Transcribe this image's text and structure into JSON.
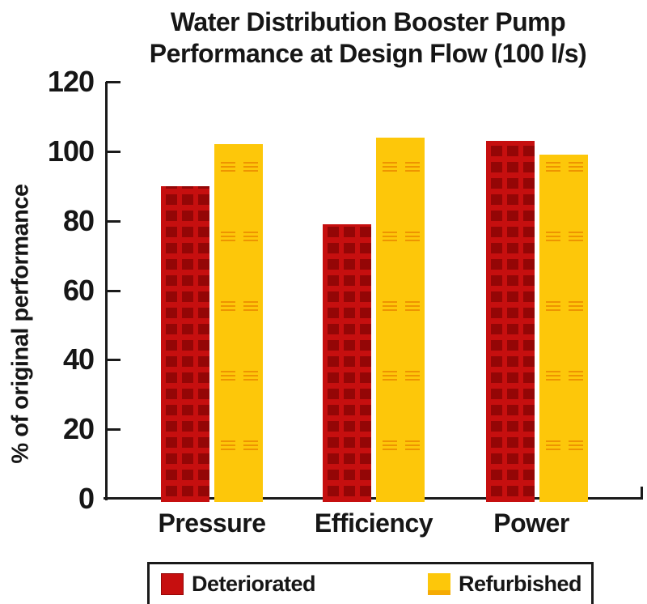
{
  "title": {
    "line1": "Water Distribution Booster Pump",
    "line2": "Performance at Design Flow (100 l/s)"
  },
  "colors": {
    "deteriorated": "#c60f0f",
    "deteriorated_dark": "#940606",
    "refurbished": "#fdc70a",
    "refurbished_dash": "#ee9400",
    "axis": "#1a1a1a",
    "text": "#161616",
    "background": "#ffffff"
  },
  "legend": {
    "items": [
      "Deteriorated",
      "Refurbished"
    ]
  },
  "chart_data": {
    "type": "bar",
    "title": "Water Distribution Booster Pump Performance at Design Flow (100 l/s)",
    "title_lines": [
      "Water Distribution Booster Pump",
      "Performance at Design Flow (100 l/s)"
    ],
    "xlabel": "",
    "ylabel": "% of original performance",
    "ylim": [
      0,
      120
    ],
    "yticks": [
      0,
      20,
      40,
      60,
      80,
      100,
      120
    ],
    "grid": false,
    "legend_position": "bottom",
    "categories": [
      "Pressure",
      "Efficiency",
      "Power"
    ],
    "series": [
      {
        "name": "Deteriorated",
        "color": "#c60f0f",
        "values": [
          90,
          79,
          103
        ]
      },
      {
        "name": "Refurbished",
        "color": "#fdc70a",
        "values": [
          102,
          104,
          99
        ]
      }
    ]
  }
}
